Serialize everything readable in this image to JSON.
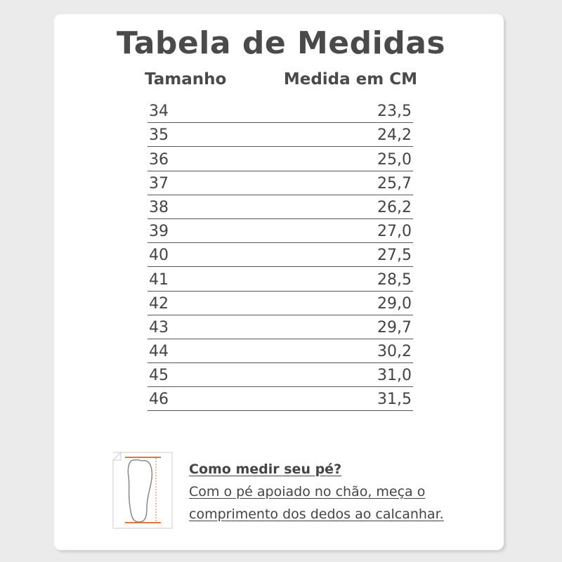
{
  "title": "Tabela de Medidas",
  "headers": {
    "size": "Tamanho",
    "measure": "Medida em CM"
  },
  "rows": [
    {
      "size": "34",
      "cm": "23,5"
    },
    {
      "size": "35",
      "cm": "24,2"
    },
    {
      "size": "36",
      "cm": "25,0"
    },
    {
      "size": "37",
      "cm": "25,7"
    },
    {
      "size": "38",
      "cm": "26,2"
    },
    {
      "size": "39",
      "cm": "27,0"
    },
    {
      "size": "40",
      "cm": "27,5"
    },
    {
      "size": "41",
      "cm": "28,5"
    },
    {
      "size": "42",
      "cm": "29,0"
    },
    {
      "size": "43",
      "cm": "29,7"
    },
    {
      "size": "44",
      "cm": "30,2"
    },
    {
      "size": "45",
      "cm": "31,0"
    },
    {
      "size": "46",
      "cm": "31,5"
    }
  ],
  "howto": {
    "heading": "Como medir seu pé?",
    "line1": "Com o pé apoiado no chão, meça o",
    "line2": "comprimento dos dedos ao calcanhar."
  },
  "colors": {
    "accent": "#e07a3a",
    "text": "#4a4a4a",
    "background": "#ebebeb"
  },
  "icons": [
    "foot-measure-icon"
  ]
}
